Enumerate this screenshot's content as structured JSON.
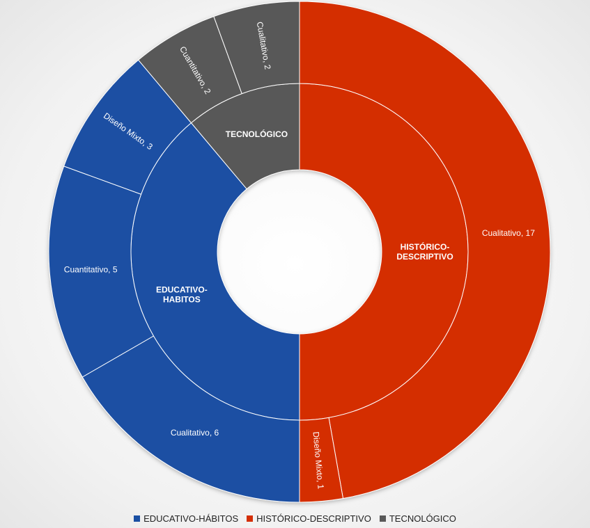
{
  "chart_data": {
    "type": "sunburst",
    "legend_position": "bottom",
    "colors": {
      "EDUCATIVO-HÁBITOS": "#1a4fa3",
      "HISTÓRICO-DESCRIPTIVO": "#d42e05",
      "TECNOLÓGICO": "#595959"
    },
    "legend": [
      "EDUCATIVO-HÁBITOS",
      "HISTÓRICO-DESCRIPTIVO",
      "TECNOLÓGICO"
    ],
    "categories": [
      {
        "name": "HISTÓRICO-DESCRIPTIVO",
        "label_lines": [
          "HISTÓRICO-",
          "DESCRIPTIVO"
        ],
        "children": [
          {
            "name": "Cualitativo",
            "value": 17,
            "label": "Cualitativo, 17"
          },
          {
            "name": "Diseño Mixto",
            "value": 1,
            "label": "Diseño Mixto, 1"
          }
        ]
      },
      {
        "name": "EDUCATIVO-HÁBITOS",
        "label_lines": [
          "EDUCATIVO-",
          "HABITOS"
        ],
        "children": [
          {
            "name": "Cualitativo",
            "value": 6,
            "label": "Cualitativo, 6"
          },
          {
            "name": "Cuantitativo",
            "value": 5,
            "label": "Cuantitativo, 5"
          },
          {
            "name": "Diseño Mixto",
            "value": 3,
            "label": "Diseño Mixto, 3"
          }
        ]
      },
      {
        "name": "TECNOLÓGICO",
        "label_lines": [
          "TECNOLÓGICO"
        ],
        "children": [
          {
            "name": "Cuantitativo",
            "value": 2,
            "label": "Cuantitativo, 2"
          },
          {
            "name": "Cualitativo",
            "value": 2,
            "label": "Cualitativo, 2"
          }
        ]
      }
    ]
  }
}
